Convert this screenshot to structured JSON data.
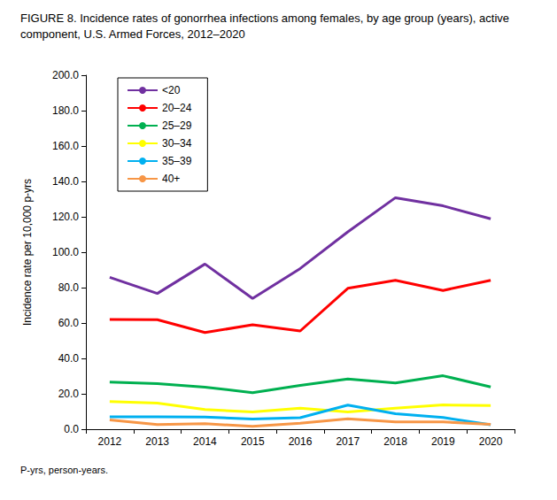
{
  "chart_data": {
    "type": "line",
    "title": "FIGURE 8. Incidence rates of gonorrhea infections among females, by age group (years), active component, U.S. Armed Forces, 2012–2020",
    "y_label": "Incidence rate per 10,000 p-yrs",
    "footnote": "P-yrs, person-years.",
    "categories": [
      "2012",
      "2013",
      "2014",
      "2015",
      "2016",
      "2017",
      "2018",
      "2019",
      "2020"
    ],
    "series": [
      {
        "name": "<20",
        "color": "#7030a0",
        "values": [
          85.8,
          76.7,
          93.3,
          73.9,
          90.8,
          111.5,
          130.8,
          126.2,
          118.9
        ]
      },
      {
        "name": "20–24",
        "color": "#ff0000",
        "values": [
          62.0,
          61.9,
          54.6,
          59.0,
          55.5,
          79.6,
          84.1,
          78.4,
          84.1
        ]
      },
      {
        "name": "25–29",
        "color": "#00b050",
        "values": [
          26.6,
          25.7,
          23.8,
          20.6,
          24.8,
          28.4,
          26.1,
          30.2,
          23.9
        ]
      },
      {
        "name": "30–34",
        "color": "#ffff00",
        "values": [
          15.6,
          14.8,
          11.1,
          9.8,
          11.9,
          9.8,
          11.9,
          13.7,
          13.4
        ]
      },
      {
        "name": "35–39",
        "color": "#00b0f0",
        "values": [
          7.0,
          7.0,
          6.9,
          5.7,
          6.5,
          13.6,
          8.8,
          6.6,
          2.5
        ]
      },
      {
        "name": "40+",
        "color": "#f79646",
        "values": [
          5.2,
          2.6,
          3.1,
          1.6,
          3.4,
          5.9,
          4.1,
          4.1,
          2.8
        ]
      }
    ],
    "ylim": [
      0,
      200
    ],
    "yticks": [
      {
        "value": 0,
        "label": "0.0"
      },
      {
        "value": 20,
        "label": "20.0"
      },
      {
        "value": 40,
        "label": "40.0"
      },
      {
        "value": 60,
        "label": "60.0"
      },
      {
        "value": 80,
        "label": "80.0"
      },
      {
        "value": 100,
        "label": "100.0"
      },
      {
        "value": 120,
        "label": "120.0"
      },
      {
        "value": 140,
        "label": "140.0"
      },
      {
        "value": 160,
        "label": "160.0"
      },
      {
        "value": 180,
        "label": "180.0"
      },
      {
        "value": 200,
        "label": "200.0"
      }
    ],
    "grid": false,
    "legend": "upper left"
  }
}
